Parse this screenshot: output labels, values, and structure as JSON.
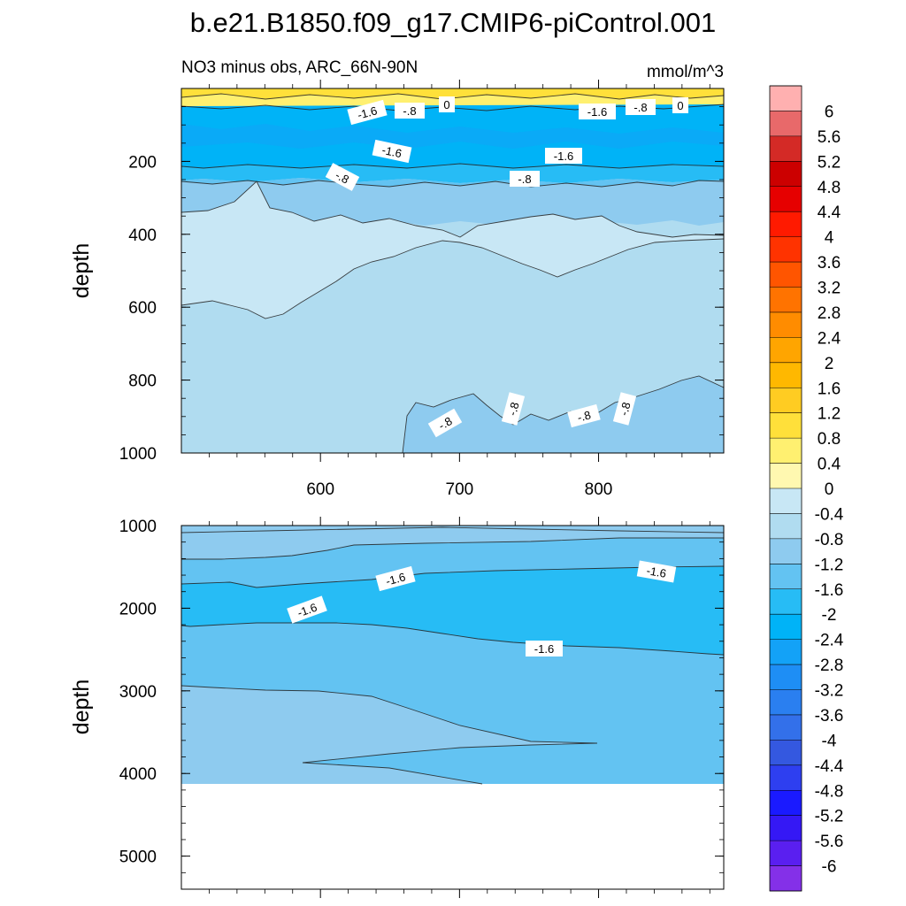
{
  "chart_data": {
    "title": "b.e21.B1850.f09_g17.CMIP6-piControl.001",
    "panels": [
      {
        "type": "contour",
        "left_string": "NO3 minus obs, ARC_66N-90N",
        "right_string": "mmol/m^3",
        "ylabel": "depth",
        "y_reversed": true,
        "ylim": [
          0,
          1000
        ],
        "xlim": [
          500,
          890
        ],
        "x_ticks": [
          600,
          700,
          800
        ],
        "x_tick_labels": [
          "600",
          "700",
          "800"
        ],
        "y_ticks": [
          200,
          400,
          600,
          800,
          1000
        ],
        "y_tick_labels": [
          "200",
          "400",
          "600",
          "800",
          "1000"
        ],
        "contour_labels": [
          "-1.6",
          "-.8",
          "0",
          "-1.6",
          "-.8",
          "0",
          "-1.6",
          "-1.6",
          "-.8",
          "-.8",
          "-.8",
          "-.8",
          "-.8",
          "-.8"
        ],
        "regions": [
          {
            "depth_range": [
              0,
              45
            ],
            "value_range": [
              0.0,
              1.2
            ],
            "description": "near-surface positive band"
          },
          {
            "depth_range": [
              45,
              200
            ],
            "value_range": [
              -2.4,
              -1.6
            ]
          },
          {
            "depth_range": [
              200,
              250
            ],
            "value_range": [
              -1.6,
              -0.8
            ]
          },
          {
            "depth_range": [
              250,
              1000
            ],
            "value_range": [
              -0.8,
              -0.4
            ]
          },
          {
            "depth_range": [
              300,
              620
            ],
            "value_range": [
              -0.4,
              0.0
            ]
          },
          {
            "depth_range": [
              820,
              1000
            ],
            "value_range": [
              -1.2,
              -0.8
            ]
          }
        ]
      },
      {
        "type": "contour",
        "ylabel": "depth",
        "y_reversed": true,
        "ylim": [
          1000,
          5400
        ],
        "xlim": [
          500,
          890
        ],
        "y_ticks": [
          1000,
          2000,
          3000,
          4000,
          5000
        ],
        "y_tick_labels": [
          "1000",
          "2000",
          "3000",
          "4000",
          "5000"
        ],
        "contour_labels": [
          "-1.6",
          "-1.6",
          "-1.6",
          "-1.6"
        ],
        "regions": [
          {
            "depth_range": [
              1000,
              1300
            ],
            "value_range": [
              -1.2,
              -0.8
            ]
          },
          {
            "depth_range": [
              1300,
              1600
            ],
            "value_range": [
              -1.6,
              -1.2
            ]
          },
          {
            "depth_range": [
              1600,
              2500
            ],
            "value_range": [
              -2.0,
              -1.6
            ]
          },
          {
            "depth_range": [
              2500,
              3000
            ],
            "value_range": [
              -1.6,
              -1.2
            ]
          },
          {
            "depth_range": [
              3000,
              4100
            ],
            "value_range": [
              -1.2,
              -0.8
            ]
          }
        ],
        "data_bottom_depth": 4100
      }
    ],
    "colorbar": {
      "labels": [
        "6",
        "5.6",
        "5.2",
        "4.8",
        "4.4",
        "4",
        "3.6",
        "3.2",
        "2.8",
        "2.4",
        "2",
        "1.6",
        "1.2",
        "0.8",
        "0.4",
        "0",
        "-0.4",
        "-0.8",
        "-1.2",
        "-1.6",
        "-2",
        "-2.4",
        "-2.8",
        "-3.2",
        "-3.6",
        "-4",
        "-4.4",
        "-4.8",
        "-5.2",
        "-5.6",
        "-6"
      ],
      "colors": [
        "#ffb0b0",
        "#e8696a",
        "#d42a26",
        "#cc0000",
        "#e60000",
        "#ff1a00",
        "#ff3300",
        "#ff5500",
        "#ff7300",
        "#ff8c00",
        "#ffa500",
        "#ffb800",
        "#ffcc22",
        "#ffe03a",
        "#fff070",
        "#fff8b0",
        "#c8e7f5",
        "#b0dcf0",
        "#8ecbef",
        "#63c3f2",
        "#27bcf5",
        "#00b3f7",
        "#13a2f7",
        "#1e8ef5",
        "#2a7ff0",
        "#3370ea",
        "#3458e0",
        "#2e3ff0",
        "#1a1aff",
        "#3518f5",
        "#5a1ff0",
        "#8430e8"
      ]
    }
  }
}
